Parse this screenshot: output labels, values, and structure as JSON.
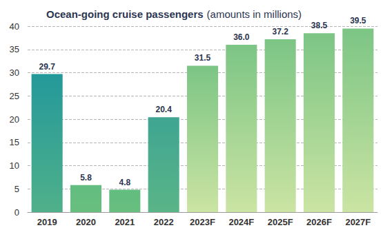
{
  "chart_data": {
    "type": "bar",
    "title": "Ocean-going cruise passengers",
    "subtitle": "(amounts in millions)",
    "categories": [
      "2019",
      "2020",
      "2021",
      "2022",
      "2023F",
      "2024F",
      "2025F",
      "2026F",
      "2027F"
    ],
    "values": [
      29.7,
      5.8,
      4.8,
      20.4,
      31.5,
      36.0,
      37.2,
      38.5,
      39.5
    ],
    "value_labels": [
      "29.7",
      "5.8",
      "4.8",
      "20.4",
      "31.5",
      "36.0",
      "37.2",
      "38.5",
      "39.5"
    ],
    "colors": [
      "#24999a",
      "#62bd80",
      "#62bd80",
      "#3fa592",
      "#7cc585",
      "#7cc585",
      "#7cc585",
      "#7cc585",
      "#7cc585"
    ],
    "ylim": [
      0,
      40
    ],
    "yticks": [
      0,
      5,
      10,
      15,
      20,
      25,
      30,
      35,
      40
    ],
    "grid": true,
    "data_labels": true
  }
}
